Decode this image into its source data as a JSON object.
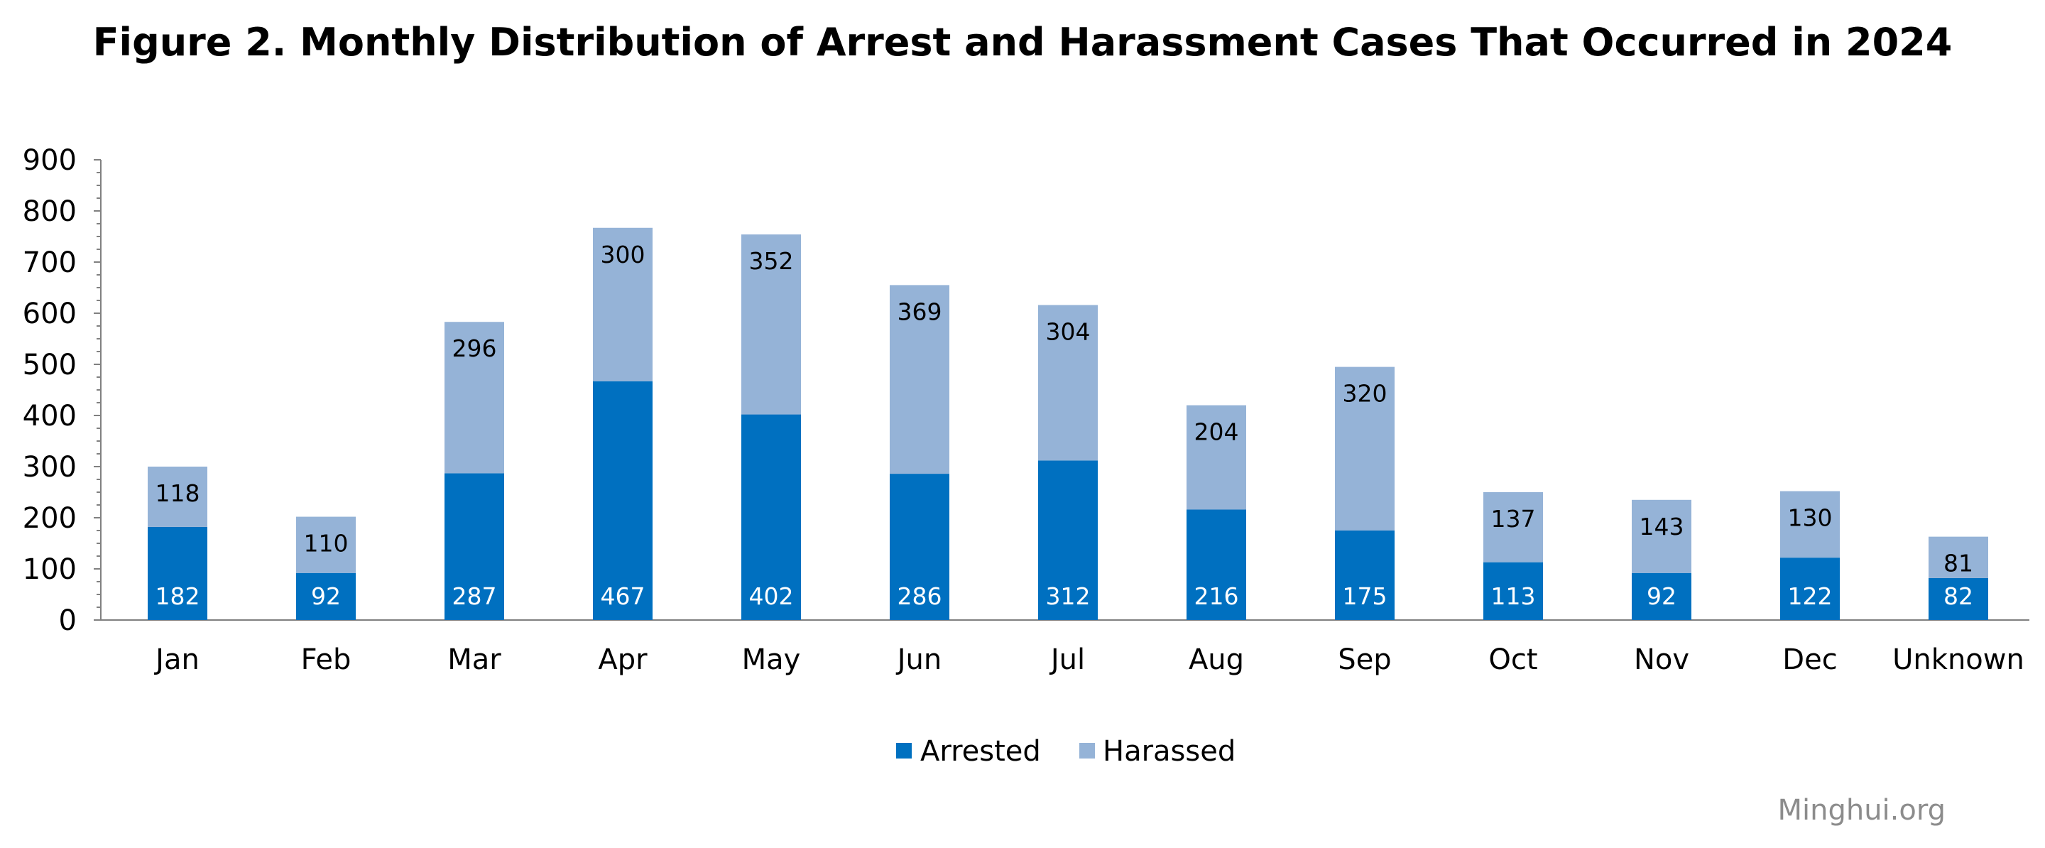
{
  "chart_data": {
    "type": "bar",
    "stacked": true,
    "title": "Figure 2. Monthly Distribution of Arrest and Harassment Cases That Occurred in 2024",
    "xlabel": "",
    "ylabel": "",
    "ylim": [
      0,
      900
    ],
    "yticks": [
      0,
      100,
      200,
      300,
      400,
      500,
      600,
      700,
      800,
      900
    ],
    "grid": false,
    "legend_position": "bottom",
    "categories": [
      "Jan",
      "Feb",
      "Mar",
      "Apr",
      "May",
      "Jun",
      "Jul",
      "Aug",
      "Sep",
      "Oct",
      "Nov",
      "Dec",
      "Unknown"
    ],
    "series": [
      {
        "name": "Arrested",
        "color": "#0070c0",
        "label_color": "#ffffff",
        "values": [
          182,
          92,
          287,
          467,
          402,
          286,
          312,
          216,
          175,
          113,
          92,
          122,
          82
        ]
      },
      {
        "name": "Harassed",
        "color": "#95b3d7",
        "label_color": "#000000",
        "values": [
          118,
          110,
          296,
          300,
          352,
          369,
          304,
          204,
          320,
          137,
          143,
          130,
          81
        ]
      }
    ]
  },
  "source_note": "Minghui.org"
}
